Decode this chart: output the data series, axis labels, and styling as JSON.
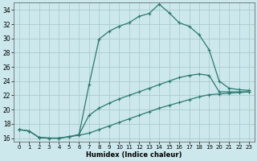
{
  "xlabel": "Humidex (Indice chaleur)",
  "bg_color": "#cce8ec",
  "grid_color": "#aacccc",
  "line_color": "#2a7a6f",
  "ylim": [
    15.5,
    35.0
  ],
  "xlim": [
    -0.5,
    23.5
  ],
  "yticks": [
    16,
    18,
    20,
    22,
    24,
    26,
    28,
    30,
    32,
    34
  ],
  "xticks": [
    0,
    1,
    2,
    3,
    4,
    5,
    6,
    7,
    8,
    9,
    10,
    11,
    12,
    13,
    14,
    15,
    16,
    17,
    18,
    19,
    20,
    21,
    22,
    23
  ],
  "line1_x": [
    0,
    1,
    2,
    3,
    4,
    5,
    6,
    7,
    8,
    9,
    10,
    11,
    12,
    13,
    14,
    15,
    16,
    17,
    18,
    19,
    20,
    21,
    22,
    23
  ],
  "line1_y": [
    17.2,
    17.0,
    16.1,
    16.0,
    16.0,
    16.2,
    16.5,
    23.5,
    29.9,
    31.0,
    31.7,
    32.2,
    33.1,
    33.5,
    34.8,
    33.6,
    32.2,
    31.7,
    30.5,
    28.4,
    24.0,
    23.0,
    22.8,
    22.7
  ],
  "line2_x": [
    0,
    1,
    2,
    3,
    4,
    5,
    6,
    7,
    8,
    9,
    10,
    11,
    12,
    13,
    14,
    15,
    16,
    17,
    18,
    19,
    20,
    21,
    22,
    23
  ],
  "line2_y": [
    17.2,
    17.0,
    16.1,
    16.0,
    16.0,
    16.2,
    16.5,
    19.2,
    20.2,
    20.9,
    21.5,
    22.0,
    22.5,
    23.0,
    23.5,
    24.0,
    24.5,
    24.8,
    25.0,
    24.8,
    22.5,
    22.5,
    22.5,
    22.5
  ],
  "line3_x": [
    0,
    1,
    2,
    3,
    4,
    5,
    6,
    7,
    8,
    9,
    10,
    11,
    12,
    13,
    14,
    15,
    16,
    17,
    18,
    19,
    20,
    21,
    22,
    23
  ],
  "line3_y": [
    17.2,
    17.0,
    16.1,
    16.0,
    16.0,
    16.2,
    16.4,
    16.7,
    17.2,
    17.7,
    18.2,
    18.7,
    19.2,
    19.7,
    20.2,
    20.6,
    21.0,
    21.4,
    21.8,
    22.1,
    22.2,
    22.3,
    22.4,
    22.5
  ]
}
